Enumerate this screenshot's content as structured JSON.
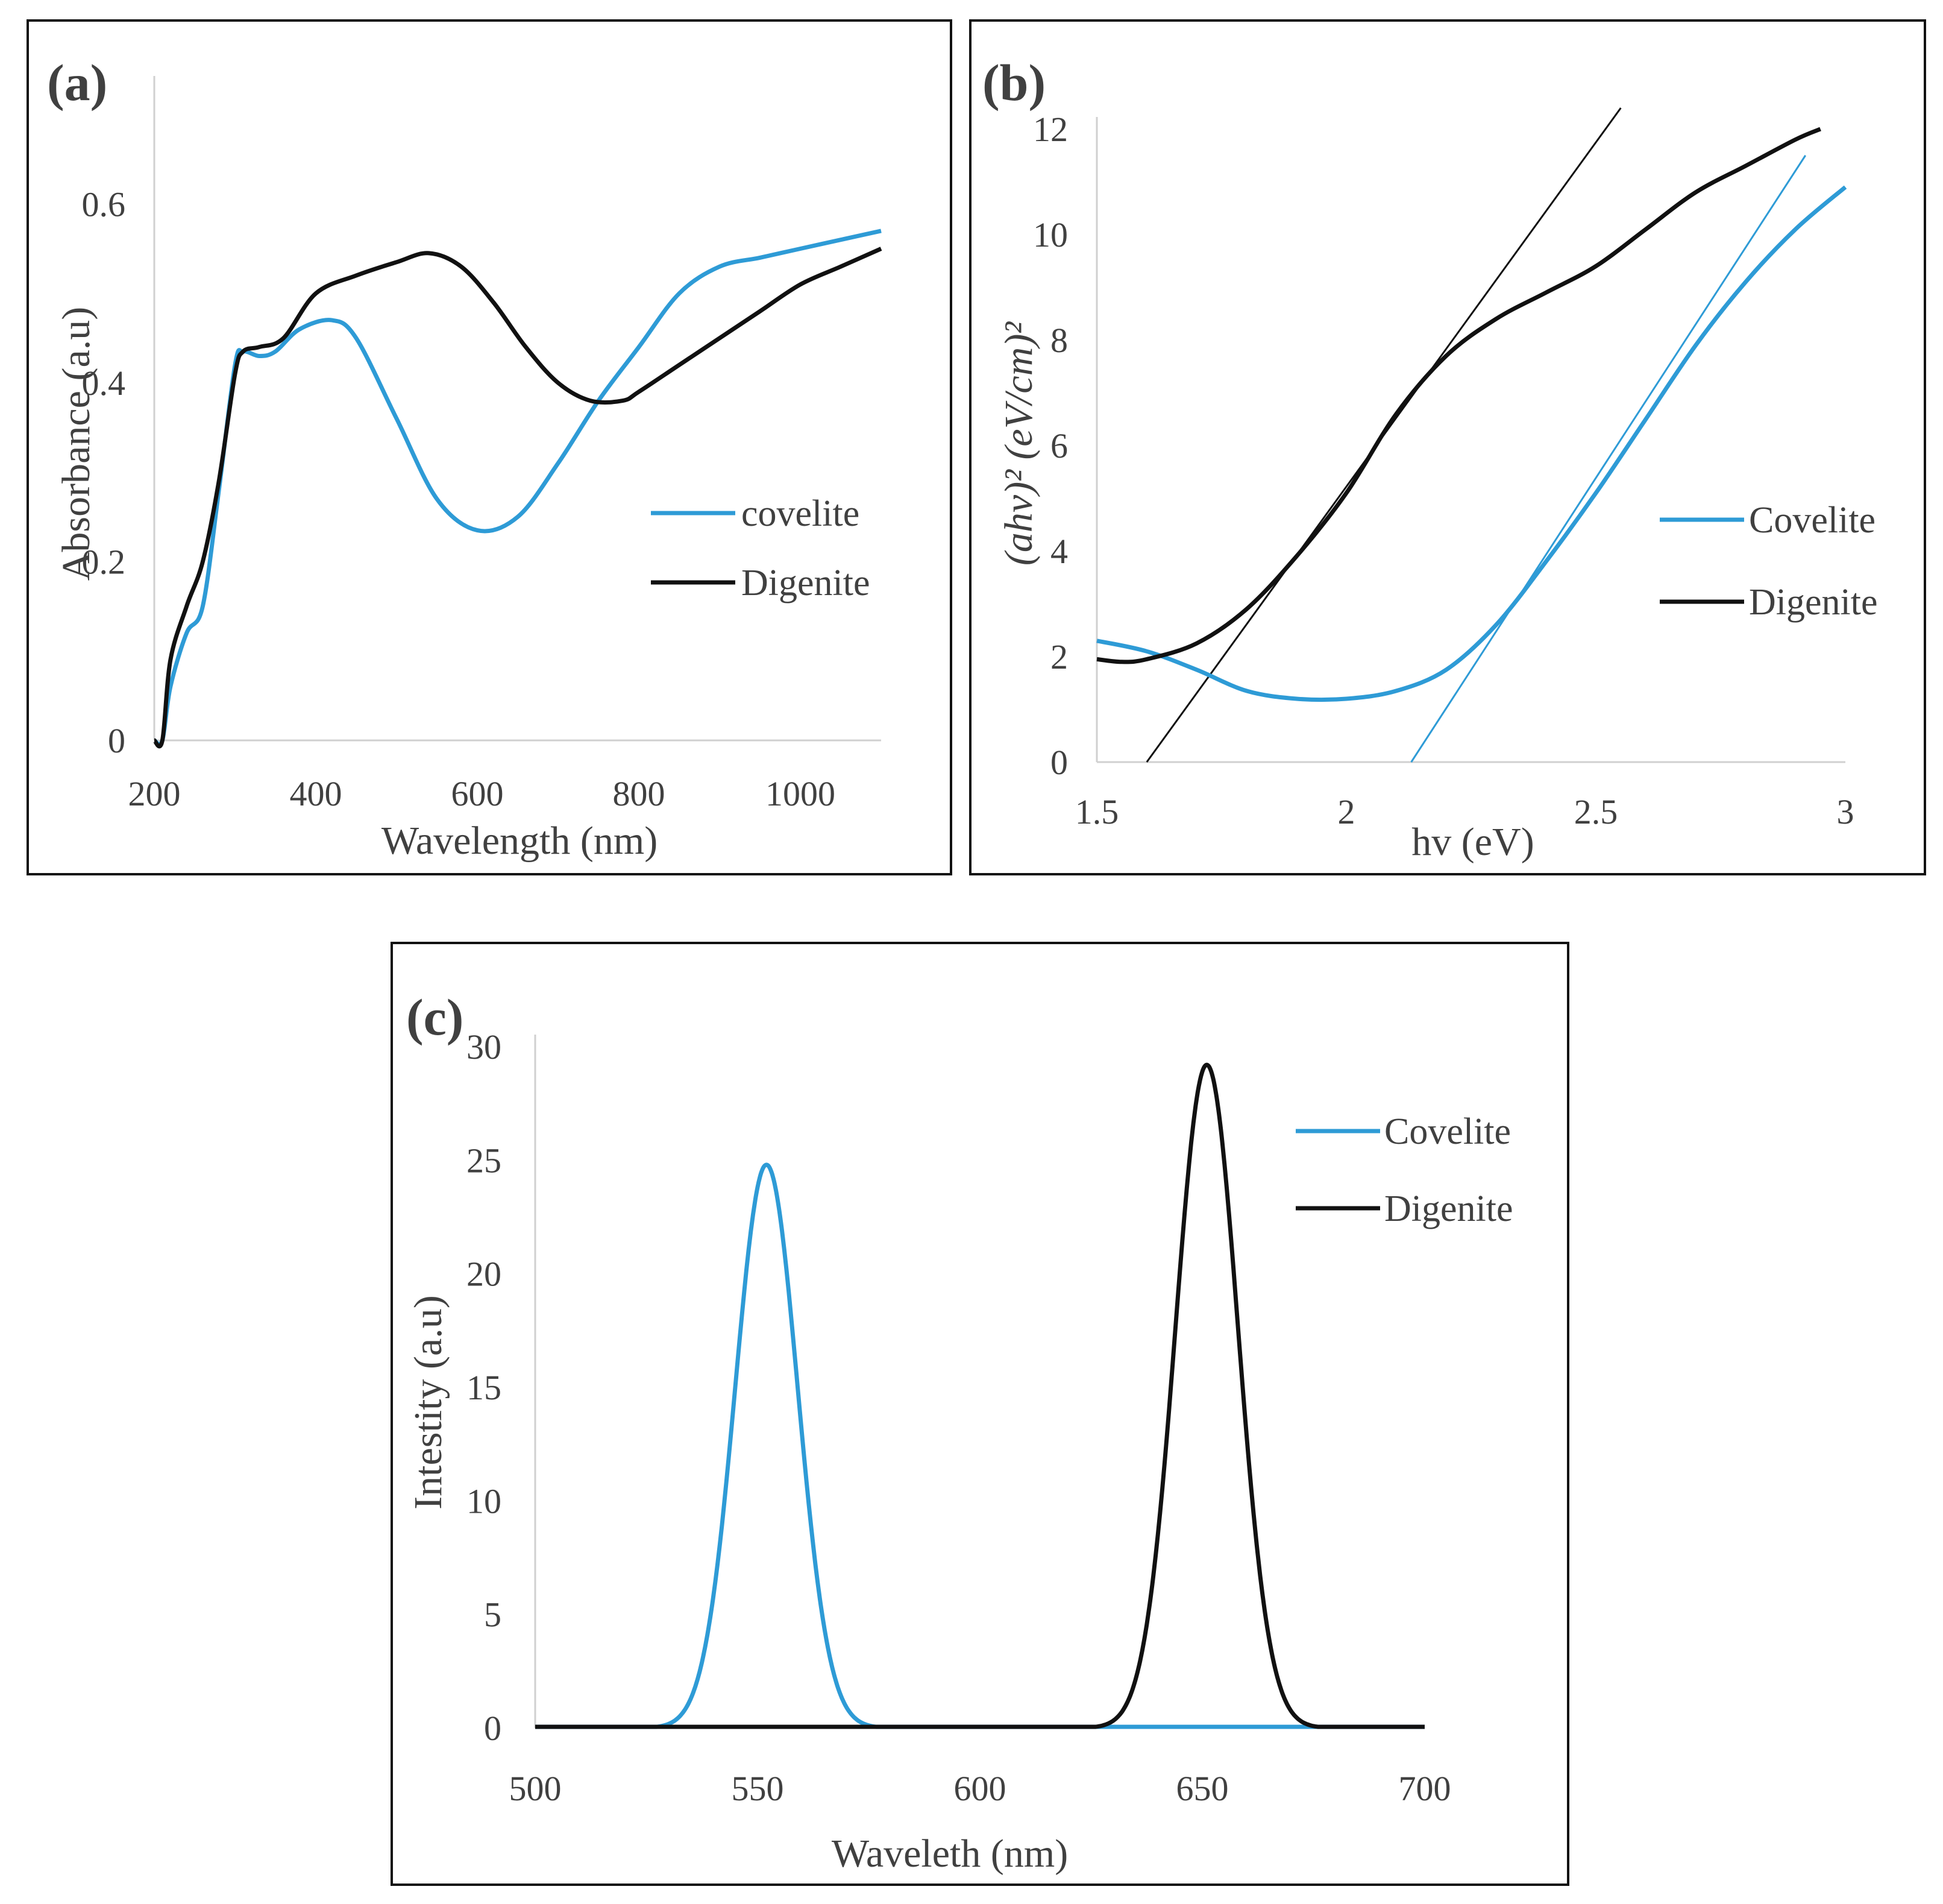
{
  "chart_data": [
    {
      "id": "a",
      "type": "line",
      "panel_label": "(a)",
      "xlabel": "Wavelength (nm)",
      "ylabel": "Absorbance (a.u)",
      "xlim": [
        200,
        1100
      ],
      "ylim": [
        0,
        0.75
      ],
      "xticks": [
        200,
        400,
        600,
        800,
        1000
      ],
      "yticks": [
        0,
        0.2,
        0.4,
        0.6
      ],
      "ytick_labels": [
        "0",
        "0.2",
        "0.4",
        "0.6"
      ],
      "legend_position": "right",
      "series": [
        {
          "name": "covelite",
          "color": "#2e9bd6",
          "x": [
            200,
            210,
            220,
            240,
            260,
            280,
            300,
            310,
            330,
            350,
            380,
            420,
            450,
            500,
            550,
            600,
            650,
            700,
            750,
            800,
            850,
            900,
            950,
            1000,
            1050,
            1100
          ],
          "y": [
            0,
            0,
            0.06,
            0.12,
            0.15,
            0.28,
            0.42,
            0.435,
            0.43,
            0.435,
            0.46,
            0.47,
            0.45,
            0.36,
            0.27,
            0.235,
            0.25,
            0.31,
            0.38,
            0.44,
            0.5,
            0.53,
            0.54,
            0.55,
            0.56,
            0.57
          ]
        },
        {
          "name": "Digenite",
          "color": "#111111",
          "x": [
            200,
            210,
            220,
            240,
            260,
            280,
            300,
            310,
            330,
            360,
            400,
            450,
            500,
            540,
            580,
            620,
            660,
            700,
            740,
            780,
            800,
            850,
            900,
            950,
            1000,
            1050,
            1100
          ],
          "y": [
            0,
            0,
            0.09,
            0.15,
            0.2,
            0.29,
            0.41,
            0.435,
            0.44,
            0.45,
            0.5,
            0.52,
            0.535,
            0.545,
            0.53,
            0.49,
            0.44,
            0.4,
            0.38,
            0.38,
            0.39,
            0.42,
            0.45,
            0.48,
            0.51,
            0.53,
            0.55
          ]
        }
      ]
    },
    {
      "id": "b",
      "type": "line",
      "panel_label": "(b)",
      "xlabel": "hv (eV)",
      "ylabel": "(ahv)² (eV/cm)²",
      "xlim": [
        1.5,
        3.0
      ],
      "ylim": [
        0,
        12
      ],
      "xticks": [
        1.5,
        2,
        2.5,
        3
      ],
      "xtick_labels": [
        "1.5",
        "2",
        "2.5",
        "3"
      ],
      "yticks": [
        0,
        2,
        4,
        6,
        8,
        10,
        12
      ],
      "legend_position": "right",
      "series": [
        {
          "name": "Covelite",
          "color": "#2e9bd6",
          "x": [
            1.5,
            1.6,
            1.7,
            1.8,
            1.9,
            2.0,
            2.1,
            2.2,
            2.3,
            2.4,
            2.5,
            2.6,
            2.7,
            2.8,
            2.9,
            3.0
          ],
          "y": [
            2.3,
            2.1,
            1.75,
            1.35,
            1.2,
            1.2,
            1.35,
            1.75,
            2.6,
            3.8,
            5.1,
            6.5,
            7.9,
            9.1,
            10.1,
            10.9
          ]
        },
        {
          "name": "Digenite",
          "color": "#111111",
          "x": [
            1.5,
            1.55,
            1.6,
            1.7,
            1.8,
            1.9,
            2.0,
            2.1,
            2.2,
            2.3,
            2.4,
            2.5,
            2.6,
            2.7,
            2.8,
            2.9,
            2.95
          ],
          "y": [
            1.95,
            1.9,
            1.95,
            2.25,
            2.9,
            3.9,
            5.1,
            6.6,
            7.7,
            8.4,
            8.9,
            9.4,
            10.1,
            10.8,
            11.3,
            11.8,
            12.0
          ]
        }
      ],
      "tangent_lines": [
        {
          "color": "#111111",
          "x": [
            1.6,
            2.55
          ],
          "y": [
            0,
            12.4
          ]
        },
        {
          "color": "#2e9bd6",
          "x": [
            2.13,
            2.92
          ],
          "y": [
            0,
            11.5
          ]
        }
      ]
    },
    {
      "id": "c",
      "type": "line",
      "panel_label": "(c)",
      "xlabel": "Waveleth (nm)",
      "ylabel": "Intestity (a.u)",
      "xlim": [
        500,
        700
      ],
      "ylim": [
        0,
        30
      ],
      "xticks": [
        500,
        550,
        600,
        650,
        700
      ],
      "yticks": [
        0,
        5,
        10,
        15,
        20,
        25,
        30
      ],
      "legend_position": "top-right",
      "series": [
        {
          "name": "Covelite",
          "color": "#2e9bd6",
          "peak_center": 552,
          "peak_height": 24.8,
          "peak_sigma": 7
        },
        {
          "name": "Digenite",
          "color": "#111111",
          "peak_center": 651,
          "peak_height": 29.2,
          "peak_sigma": 7
        }
      ]
    }
  ]
}
